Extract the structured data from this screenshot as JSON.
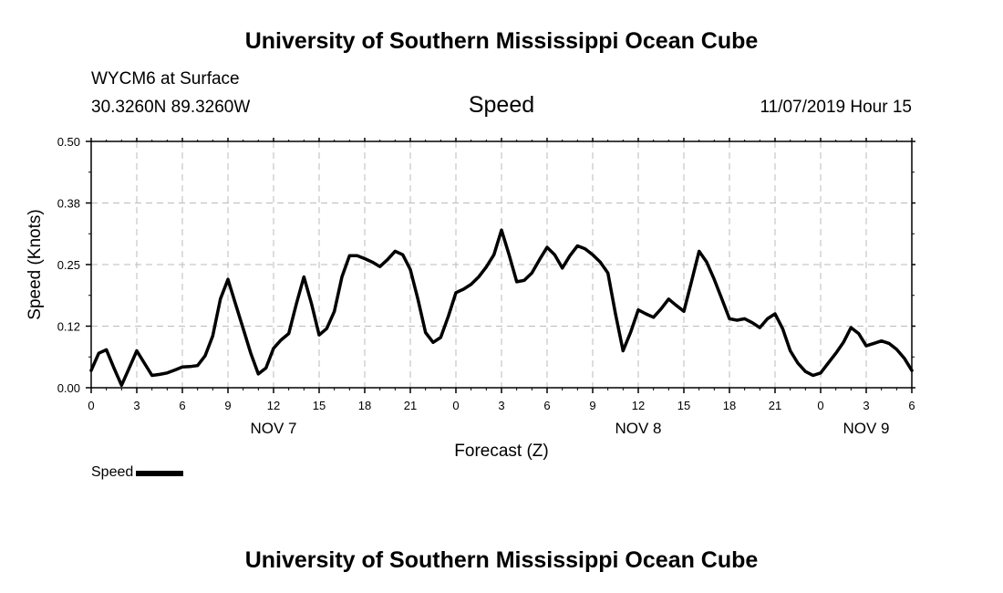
{
  "top_title": "University of Southern Mississippi Ocean Cube",
  "bottom_title": "University of Southern Mississippi Ocean Cube",
  "station": "WYCM6 at Surface",
  "coords": "30.3260N 89.3260W",
  "variable": "Speed",
  "run_time": "11/07/2019 Hour 15",
  "legend": {
    "label": "Speed",
    "color": "#000000"
  },
  "chart_data": {
    "type": "line",
    "title": "Speed",
    "xlabel": "Forecast (Z)",
    "ylabel": "Speed (Knots)",
    "ylim": [
      0,
      0.5
    ],
    "xlim": [
      0,
      54
    ],
    "yticks": [
      0,
      0.125,
      0.25,
      0.375,
      0.5
    ],
    "ytick_labels": [
      "0.00",
      "0.12",
      "0.25",
      "0.38",
      "0.50"
    ],
    "xticks": [
      0,
      3,
      6,
      9,
      12,
      15,
      18,
      21,
      24,
      27,
      30,
      33,
      36,
      39,
      42,
      45,
      48,
      51,
      54
    ],
    "xtick_labels": [
      "0",
      "3",
      "6",
      "9",
      "12",
      "15",
      "18",
      "21",
      "0",
      "3",
      "6",
      "9",
      "12",
      "15",
      "18",
      "21",
      "0",
      "3",
      "6"
    ],
    "day_labels": [
      {
        "label": "NOV 7",
        "hour": 12
      },
      {
        "label": "NOV 8",
        "hour": 36
      },
      {
        "label": "NOV 9",
        "hour": 51
      }
    ],
    "grid": true,
    "series": [
      {
        "name": "Speed",
        "x": [
          0,
          0.5,
          1,
          1.5,
          2,
          2.5,
          3,
          3.5,
          4,
          4.5,
          5,
          5.5,
          6,
          6.5,
          7,
          7.5,
          8,
          8.5,
          9,
          9.5,
          10,
          10.5,
          11,
          11.5,
          12,
          12.5,
          13,
          13.5,
          14,
          14.5,
          15,
          15.5,
          16,
          16.5,
          17,
          17.5,
          18,
          18.5,
          19,
          19.5,
          20,
          20.5,
          21,
          21.5,
          22,
          22.5,
          23,
          23.5,
          24,
          24.5,
          25,
          25.5,
          26,
          26.5,
          27,
          27.5,
          28,
          28.5,
          29,
          29.5,
          30,
          30.5,
          31,
          31.5,
          32,
          32.5,
          33,
          33.5,
          34,
          34.5,
          35,
          35.5,
          36,
          36.5,
          37,
          37.5,
          38,
          38.5,
          39,
          39.5,
          40,
          40.5,
          41,
          41.5,
          42,
          42.5,
          43,
          43.5,
          44,
          44.5,
          45,
          45.5,
          46,
          46.5,
          47,
          47.5,
          48,
          48.5,
          49,
          49.5,
          50,
          50.5,
          51,
          51.5,
          52,
          52.5,
          53,
          53.5,
          54
        ],
        "values": [
          0.035,
          0.07,
          0.077,
          0.04,
          0.005,
          0.04,
          0.075,
          0.05,
          0.025,
          0.027,
          0.03,
          0.036,
          0.042,
          0.043,
          0.045,
          0.065,
          0.105,
          0.18,
          0.22,
          0.17,
          0.12,
          0.07,
          0.028,
          0.04,
          0.08,
          0.097,
          0.11,
          0.17,
          0.225,
          0.17,
          0.107,
          0.12,
          0.155,
          0.225,
          0.268,
          0.268,
          0.262,
          0.255,
          0.246,
          0.26,
          0.277,
          0.27,
          0.24,
          0.18,
          0.112,
          0.092,
          0.102,
          0.145,
          0.193,
          0.2,
          0.21,
          0.225,
          0.245,
          0.27,
          0.32,
          0.27,
          0.215,
          0.218,
          0.233,
          0.26,
          0.285,
          0.27,
          0.243,
          0.268,
          0.288,
          0.282,
          0.27,
          0.255,
          0.233,
          0.15,
          0.075,
          0.113,
          0.158,
          0.15,
          0.143,
          0.16,
          0.18,
          0.167,
          0.155,
          0.215,
          0.277,
          0.255,
          0.22,
          0.18,
          0.14,
          0.137,
          0.14,
          0.132,
          0.122,
          0.14,
          0.15,
          0.12,
          0.075,
          0.05,
          0.033,
          0.025,
          0.03,
          0.05,
          0.07,
          0.092,
          0.122,
          0.11,
          0.085,
          0.09,
          0.095,
          0.09,
          0.078,
          0.06,
          0.035
        ]
      }
    ]
  }
}
